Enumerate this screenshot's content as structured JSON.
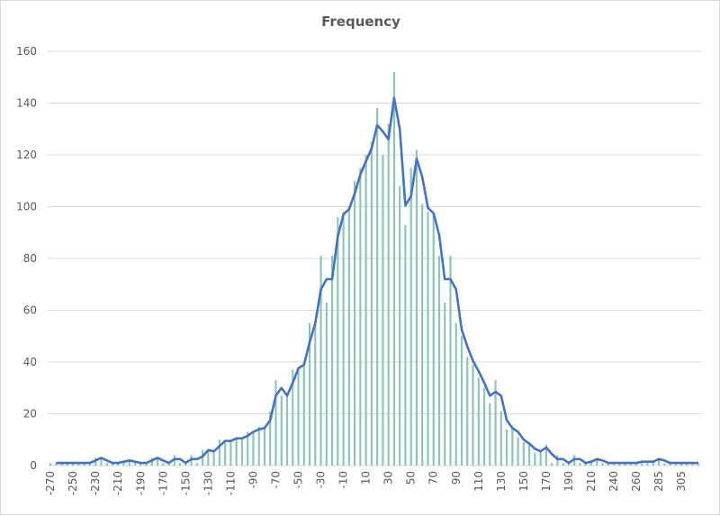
{
  "chart_data": {
    "type": "bar",
    "title": "Frequency",
    "xlabel": "",
    "ylabel": "",
    "ylim": [
      0,
      160
    ],
    "yticks": [
      0,
      20,
      40,
      60,
      80,
      100,
      120,
      140,
      160
    ],
    "grid": true,
    "legend": "none",
    "x_label_every": 4,
    "categories": [
      -270,
      -265,
      -260,
      -255,
      -250,
      -245,
      -240,
      -235,
      -230,
      -225,
      -220,
      -215,
      -210,
      -205,
      -200,
      -195,
      -190,
      -185,
      -180,
      -175,
      -170,
      -165,
      -160,
      -155,
      -150,
      -145,
      -140,
      -135,
      -130,
      -125,
      -120,
      -115,
      -110,
      -105,
      -100,
      -95,
      -90,
      -85,
      -80,
      -75,
      -70,
      -65,
      -60,
      -55,
      -50,
      -45,
      -40,
      -35,
      -30,
      -25,
      -20,
      -15,
      -10,
      -5,
      0,
      5,
      10,
      15,
      20,
      25,
      30,
      35,
      40,
      45,
      50,
      55,
      60,
      65,
      70,
      75,
      80,
      85,
      90,
      95,
      100,
      105,
      110,
      115,
      120,
      125,
      130,
      135,
      140,
      145,
      150,
      155,
      160,
      165,
      170,
      175,
      180,
      185,
      190,
      195,
      200,
      205,
      210,
      215,
      220,
      230,
      240,
      245,
      250,
      255,
      260,
      265,
      270,
      280,
      285,
      290,
      295,
      300,
      305,
      310,
      315,
      320
    ],
    "values": [
      1,
      1,
      1,
      1,
      1,
      1,
      1,
      1,
      3,
      3,
      1,
      1,
      1,
      2,
      2,
      1,
      1,
      1,
      3,
      3,
      1,
      1,
      4,
      1,
      1,
      4,
      1,
      6,
      6,
      5,
      10,
      9,
      10,
      11,
      10,
      13,
      13,
      15,
      14,
      21,
      33,
      27,
      27,
      37,
      38,
      40,
      55,
      55,
      81,
      63,
      81,
      96,
      98,
      100,
      110,
      115,
      120,
      125,
      138,
      120,
      132,
      152,
      108,
      93,
      115,
      122,
      101,
      98,
      97,
      81,
      63,
      81,
      55,
      50,
      42,
      39,
      34,
      30,
      24,
      33,
      21,
      14,
      15,
      11,
      9,
      8,
      5,
      6,
      8,
      1,
      4,
      1,
      1,
      4,
      1,
      1,
      2,
      3,
      1,
      1,
      1,
      1,
      1,
      1,
      1,
      2,
      1,
      2,
      3,
      1,
      1,
      1,
      1,
      1,
      1,
      1
    ],
    "trendline": {
      "type": "moving-average",
      "period": 2
    },
    "colors": {
      "bars": "#8fc5b7",
      "line": "#4472c4",
      "grid": "#d9d9d9",
      "text": "#595959"
    }
  }
}
